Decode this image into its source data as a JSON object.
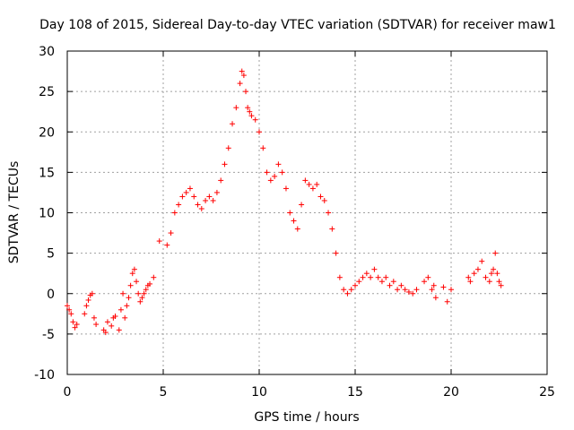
{
  "chart_data": {
    "type": "scatter",
    "title": "Day 108 of 2015, Sidereal Day-to-day VTEC variation (SDTVAR) for receiver maw1",
    "xlabel": "GPS time / hours",
    "ylabel": "SDTVAR / TECUs",
    "xlim": [
      0,
      25
    ],
    "ylim": [
      -10,
      30
    ],
    "xticks": [
      0,
      5,
      10,
      15,
      20,
      25
    ],
    "yticks": [
      -10,
      -5,
      0,
      5,
      10,
      15,
      20,
      25,
      30
    ],
    "xtick_labels": [
      "0",
      "5",
      "10",
      "15",
      "20",
      "25"
    ],
    "ytick_labels": [
      "-10",
      "-5",
      "0",
      "5",
      "10",
      "15",
      "20",
      "25",
      "30"
    ],
    "grid": true,
    "marker": "+",
    "series": [
      {
        "name": "SDTVAR",
        "color": "#ff0000",
        "x": [
          0.0,
          0.1,
          0.2,
          0.3,
          0.4,
          0.5,
          0.9,
          1.0,
          1.1,
          1.2,
          1.3,
          1.4,
          1.5,
          1.9,
          2.0,
          2.1,
          2.3,
          2.4,
          2.5,
          2.7,
          2.8,
          2.9,
          3.0,
          3.1,
          3.2,
          3.3,
          3.4,
          3.5,
          3.6,
          3.7,
          3.8,
          3.9,
          4.0,
          4.1,
          4.2,
          4.3,
          4.5,
          4.8,
          5.2,
          5.4,
          5.6,
          5.8,
          6.0,
          6.2,
          6.4,
          6.6,
          6.8,
          7.0,
          7.2,
          7.4,
          7.6,
          7.8,
          8.0,
          8.2,
          8.4,
          8.6,
          8.8,
          9.0,
          9.1,
          9.2,
          9.3,
          9.4,
          9.5,
          9.6,
          9.8,
          10.0,
          10.2,
          10.4,
          10.6,
          10.8,
          11.0,
          11.2,
          11.4,
          11.6,
          11.8,
          12.0,
          12.2,
          12.4,
          12.6,
          12.8,
          13.0,
          13.2,
          13.4,
          13.6,
          13.8,
          14.0,
          14.2,
          14.4,
          14.6,
          14.8,
          15.0,
          15.2,
          15.4,
          15.6,
          15.8,
          16.0,
          16.2,
          16.4,
          16.6,
          16.8,
          17.0,
          17.2,
          17.4,
          17.6,
          17.8,
          18.0,
          18.2,
          18.6,
          18.8,
          19.0,
          19.1,
          19.2,
          19.6,
          19.8,
          20.0,
          20.9,
          21.0,
          21.2,
          21.4,
          21.6,
          21.8,
          22.0,
          22.1,
          22.2,
          22.3,
          22.4,
          22.5,
          22.6
        ],
        "y": [
          -1.5,
          -2.0,
          -2.5,
          -3.5,
          -4.2,
          -3.8,
          -2.5,
          -1.5,
          -0.8,
          -0.2,
          0.0,
          -3.0,
          -3.8,
          -4.5,
          -4.8,
          -3.5,
          -4.0,
          -3.0,
          -2.8,
          -4.5,
          -2.0,
          0.0,
          -3.0,
          -1.5,
          -0.5,
          1.0,
          2.5,
          3.0,
          1.5,
          0.0,
          -1.0,
          -0.5,
          0.0,
          0.5,
          1.0,
          1.2,
          2.0,
          6.5,
          6.0,
          7.5,
          10.0,
          11.0,
          12.0,
          12.5,
          13.0,
          12.0,
          11.0,
          10.5,
          11.5,
          12.0,
          11.5,
          12.5,
          14.0,
          16.0,
          18.0,
          21.0,
          23.0,
          26.0,
          27.5,
          27.0,
          25.0,
          23.0,
          22.5,
          22.0,
          21.5,
          20.0,
          18.0,
          15.0,
          14.0,
          14.5,
          16.0,
          15.0,
          13.0,
          10.0,
          9.0,
          8.0,
          11.0,
          14.0,
          13.5,
          13.0,
          13.5,
          12.0,
          11.5,
          10.0,
          8.0,
          5.0,
          2.0,
          0.5,
          0.0,
          0.5,
          1.0,
          1.5,
          2.0,
          2.5,
          2.0,
          3.0,
          2.0,
          1.5,
          2.0,
          1.0,
          1.5,
          0.5,
          1.0,
          0.5,
          0.2,
          0.0,
          0.5,
          1.5,
          2.0,
          0.5,
          1.0,
          -0.5,
          0.8,
          -1.0,
          0.5,
          2.0,
          1.5,
          2.5,
          3.0,
          4.0,
          2.0,
          1.5,
          2.5,
          3.0,
          5.0,
          2.5,
          1.5,
          1.0
        ]
      }
    ]
  }
}
